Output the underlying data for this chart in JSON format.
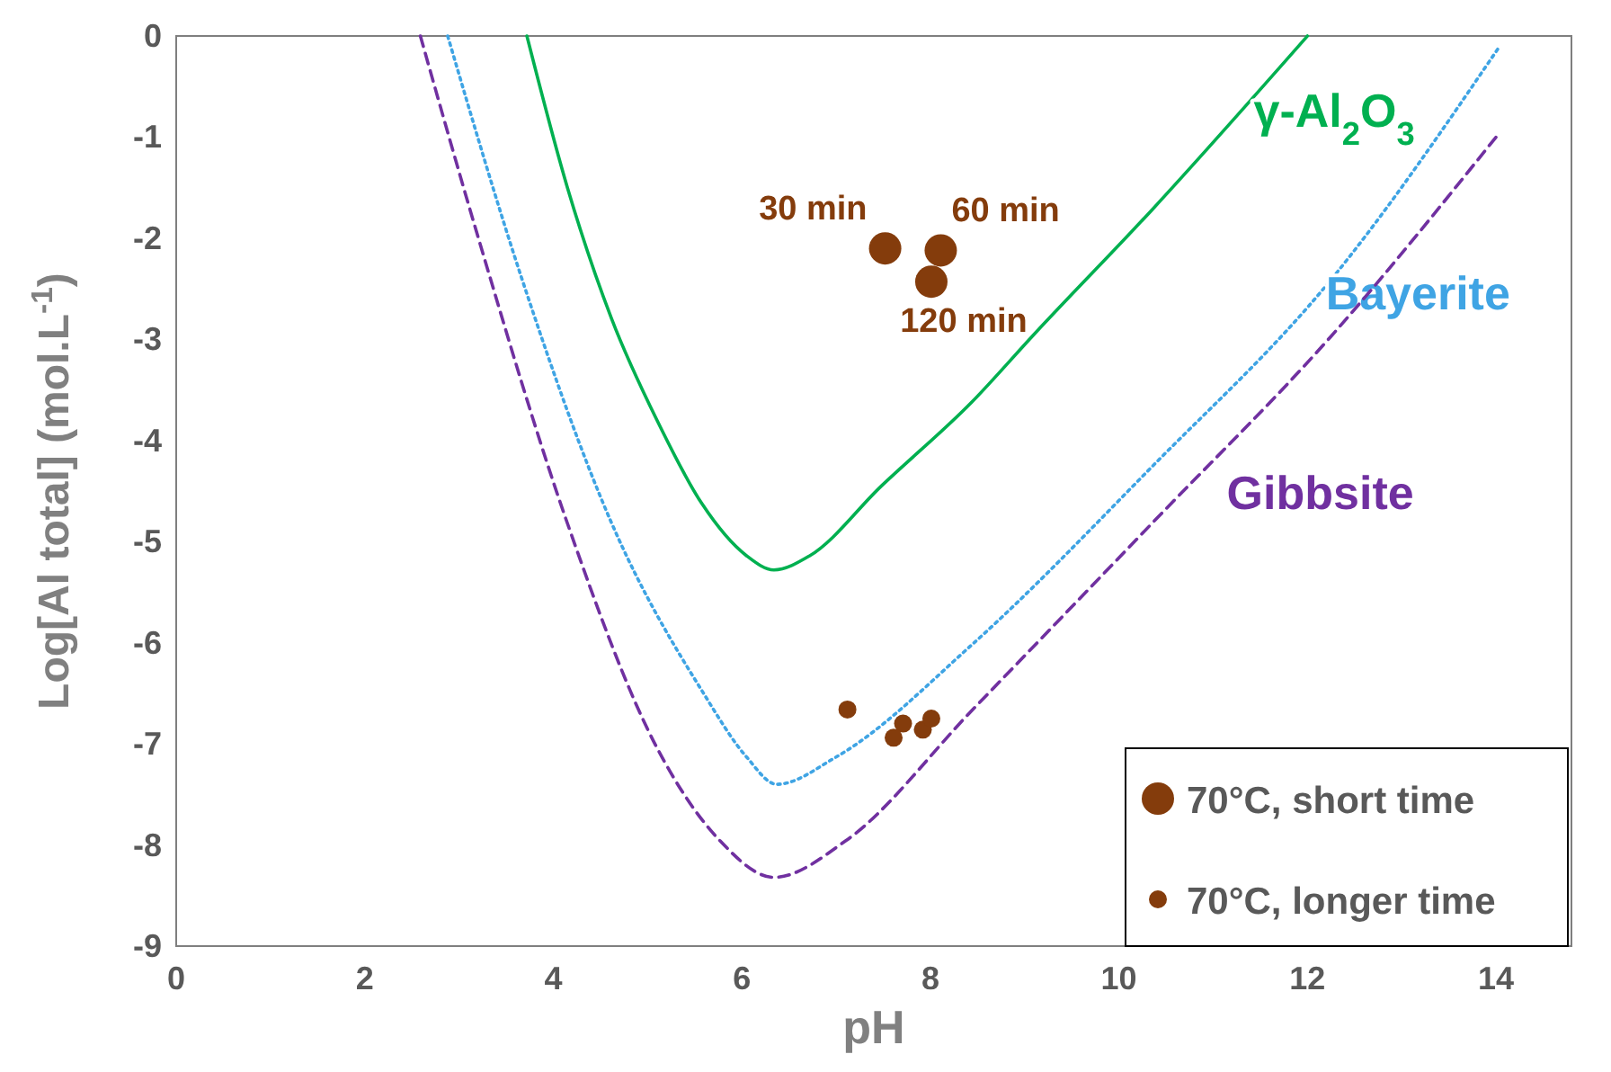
{
  "chart_data": {
    "type": "line",
    "xlabel": "pH",
    "ylabel": "Log[Al total] (mol.L$^{-1}$)",
    "xlim": [
      0,
      14.8
    ],
    "ylim": [
      -9,
      0
    ],
    "xticks": [
      0,
      2,
      4,
      6,
      8,
      10,
      12,
      14
    ],
    "yticks": [
      0,
      -1,
      -2,
      -3,
      -4,
      -5,
      -6,
      -7,
      -8,
      -9
    ],
    "grid": false,
    "legend": "bottom right",
    "series": [
      {
        "name": "γ-Al$_{2}$O$_{3}$",
        "color": "#00b050",
        "line_style": "solid",
        "marker": "none",
        "x": [
          3.72,
          4.15,
          4.62,
          5.1,
          5.58,
          6.05,
          6.34,
          6.72,
          7.48,
          8.44,
          9.1,
          10.35,
          12
        ],
        "values": [
          0,
          -1.5,
          -2.8,
          -3.8,
          -4.63,
          -5.14,
          -5.28,
          -5.14,
          -4.45,
          -3.62,
          -2.95,
          -1.72,
          0
        ]
      },
      {
        "name": "Bayerite",
        "color": "#3fa4e4",
        "line_style": "dotted",
        "marker": "none",
        "x": [
          2.88,
          3.67,
          4.62,
          5.58,
          6.05,
          6.37,
          7.0,
          8.44,
          10.35,
          12.25,
          14.04
        ],
        "values": [
          0,
          -2.41,
          -4.82,
          -6.48,
          -7.13,
          -7.4,
          -7.13,
          -6.02,
          -4.26,
          -2.41,
          -0.1
        ]
      },
      {
        "name": "Gibbsite",
        "color": "#7030a0",
        "line_style": "dashed",
        "marker": "none",
        "x": [
          2.59,
          3.19,
          4.15,
          5.1,
          5.77,
          6.34,
          7.1,
          8.44,
          10.35,
          12.25,
          14.0
        ],
        "values": [
          0,
          -1.95,
          -4.82,
          -7.04,
          -7.96,
          -8.32,
          -7.96,
          -6.67,
          -4.82,
          -2.97,
          -1.0
        ]
      },
      {
        "name": "70°C, short time",
        "type": "scatter",
        "color": "#843c0c",
        "marker": "circle",
        "x": [
          7.52,
          8.11,
          8.01
        ],
        "values": [
          -2.1,
          -2.12,
          -2.43
        ]
      },
      {
        "name": "70°C, longer time",
        "type": "scatter",
        "color": "#843c0c",
        "marker": "circle",
        "x": [
          7.12,
          7.71,
          7.61,
          7.92,
          8.01
        ],
        "values": [
          -6.66,
          -6.8,
          -6.94,
          -6.86,
          -6.75
        ]
      }
    ],
    "annotations": [
      {
        "text": "30 min",
        "x": 7.52,
        "y": -2.1
      },
      {
        "text": "60 min",
        "x": 8.11,
        "y": -2.12
      },
      {
        "text": "120 min",
        "x": 8.01,
        "y": -2.43
      }
    ]
  }
}
